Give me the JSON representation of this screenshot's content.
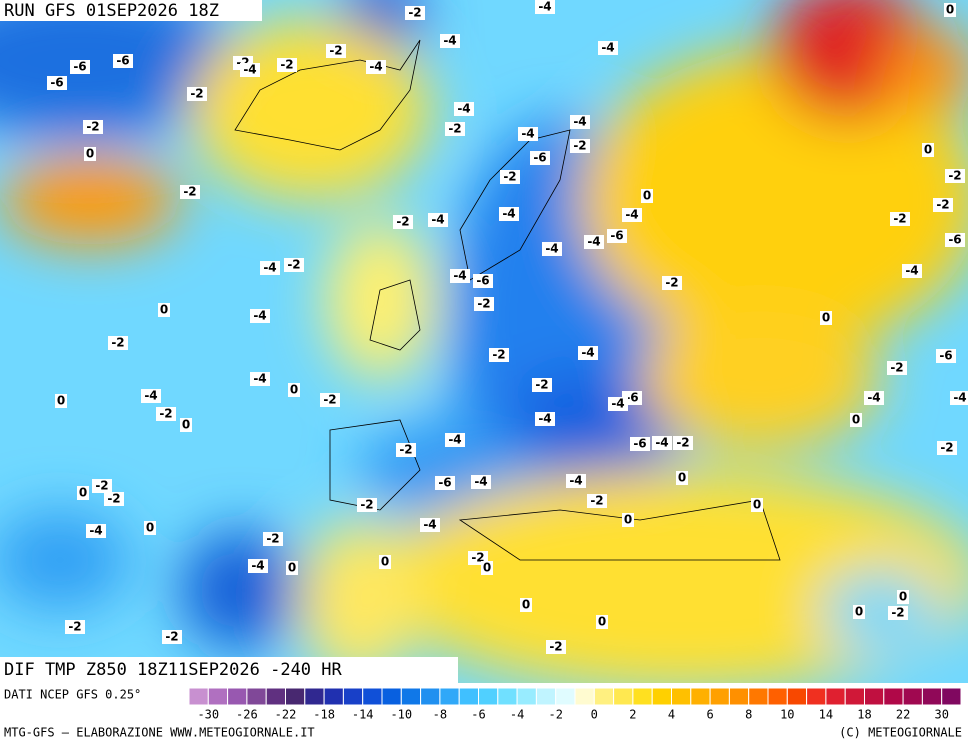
{
  "header": {
    "run": "RUN GFS 01SEP2026 18Z",
    "field": "DIF TMP Z850 18Z11SEP2026 -240 HR"
  },
  "contour_labels": [
    -2,
    -4,
    0,
    -4,
    -4,
    -2,
    -6,
    -6,
    -2,
    -4,
    -2,
    -4,
    -6,
    -2,
    -4,
    -2,
    -4,
    -2,
    -4,
    -2,
    -6,
    0,
    0,
    -2,
    -2,
    -2,
    0,
    -4,
    -4,
    -2,
    -4,
    -2,
    -2,
    -6,
    -4,
    -4,
    -6,
    -4,
    -2,
    -4,
    -6,
    -4,
    -2,
    -2,
    0,
    -4,
    0,
    -2,
    -2,
    -4,
    -6,
    -4,
    -2,
    -2,
    0,
    0,
    -4,
    -2,
    -6,
    -4,
    -4,
    -4,
    -2,
    0,
    -4,
    0,
    -4,
    -6,
    -4,
    -2,
    -2,
    -2,
    0,
    -6,
    -4,
    -4,
    -2,
    0,
    -2,
    -2,
    -2,
    0,
    0,
    0,
    -4,
    -4,
    -2,
    -2,
    0,
    0,
    -4,
    0,
    0,
    0,
    0,
    -2,
    0,
    -2,
    -2,
    -2
  ],
  "colorbar": {
    "colors": [
      "#c890d0",
      "#b070c0",
      "#9858b0",
      "#804898",
      "#603080",
      "#482870",
      "#302890",
      "#2030b0",
      "#1840c8",
      "#1050d8",
      "#0860e0",
      "#1078e8",
      "#2090f0",
      "#30a8f8",
      "#40c0ff",
      "#50d0ff",
      "#70e0ff",
      "#98ecff",
      "#c0f4ff",
      "#e0fcff",
      "#fffbd0",
      "#fff080",
      "#ffe850",
      "#ffe020",
      "#ffd000",
      "#ffc000",
      "#ffb000",
      "#ffa000",
      "#ff9000",
      "#ff7800",
      "#ff6000",
      "#f84800",
      "#f03020",
      "#e02030",
      "#d01838",
      "#c01040",
      "#b00848",
      "#a00850",
      "#900858",
      "#800860"
    ],
    "labels": [
      -30,
      -26,
      -22,
      -18,
      -14,
      -10,
      -8,
      -6,
      -4,
      -2,
      0,
      2,
      4,
      6,
      8,
      10,
      14,
      18,
      22,
      30
    ]
  },
  "footer": {
    "source": "DATI NCEP GFS 0.25°",
    "credit": "MTG-GFS – ELABORAZIONE WWW.METEOGIORNALE.IT",
    "copyright": "(C) METEOGIORNALE"
  }
}
